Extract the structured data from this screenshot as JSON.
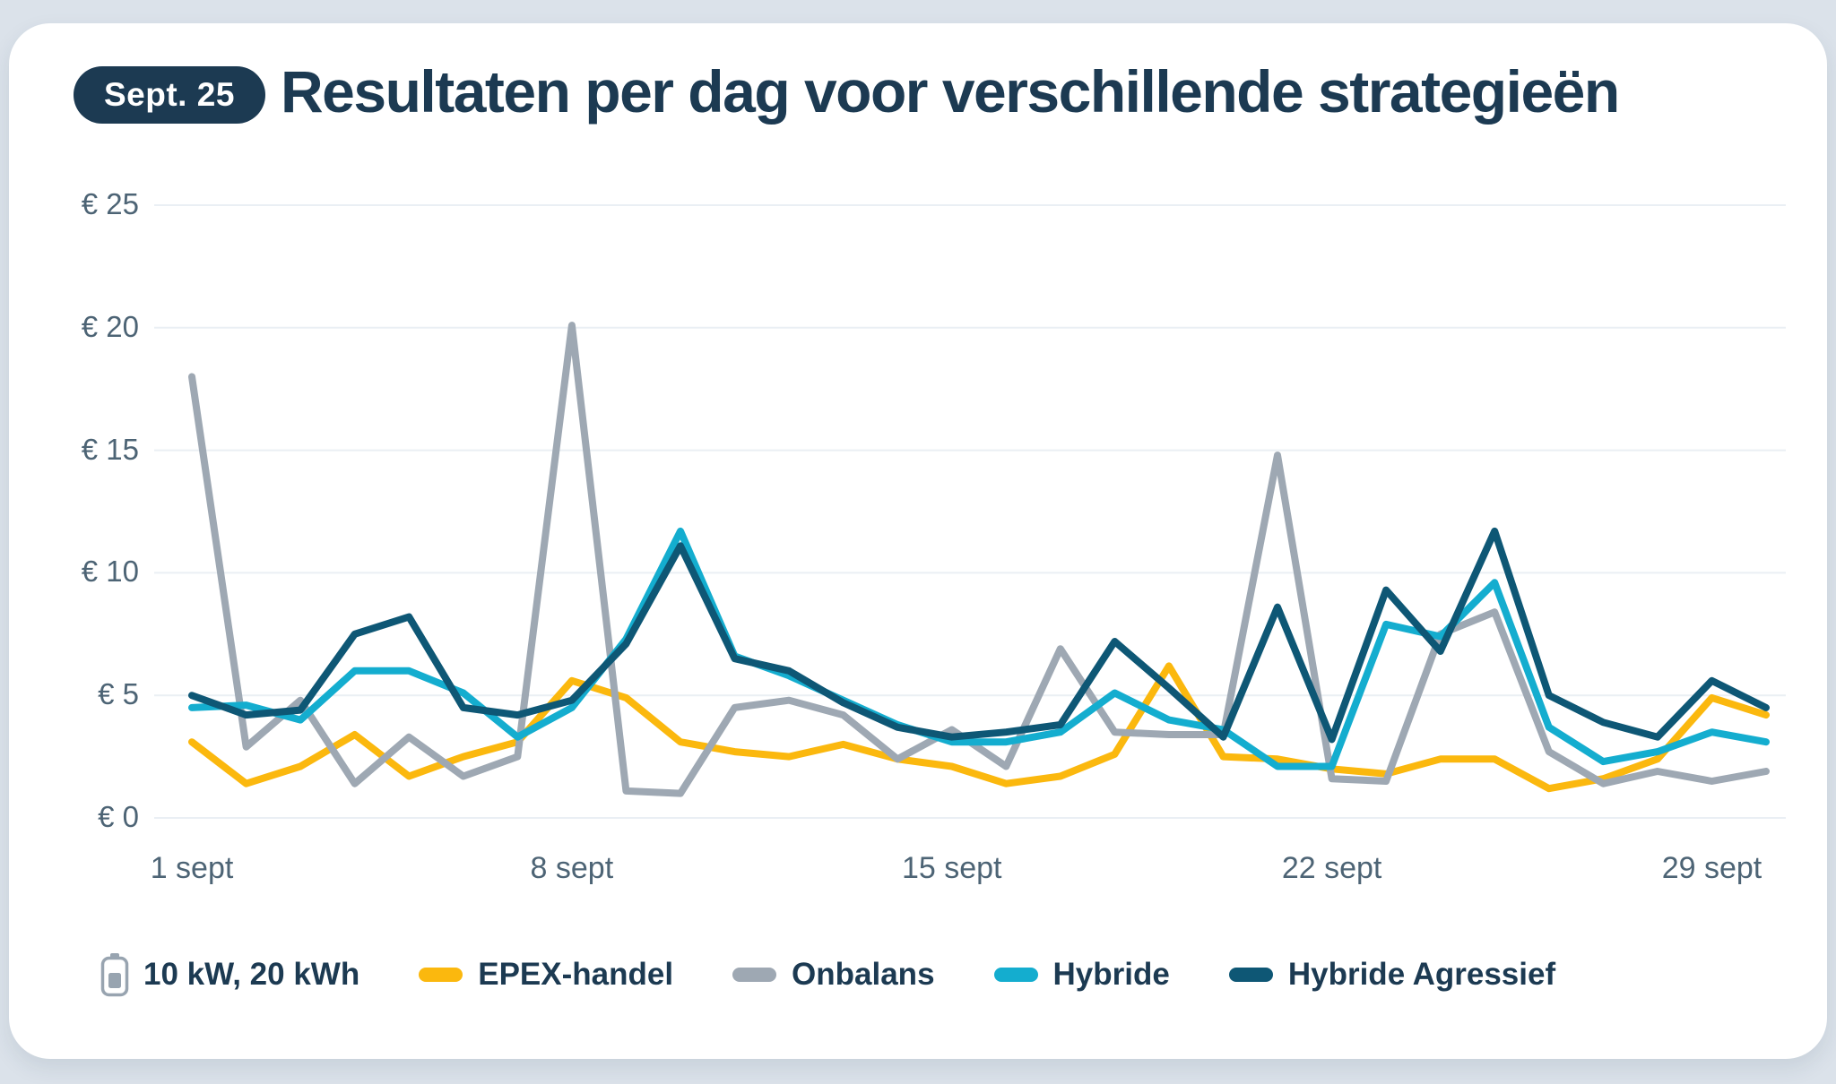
{
  "badge": "Sept. 25",
  "title": "Resultaten per dag voor verschillende strategieën",
  "legend": {
    "battery_icon": "battery-icon",
    "battery_label": "10 kW, 20 kWh"
  },
  "colors": {
    "card_background": "#ffffff",
    "page_background": "#dbe2ea",
    "badge_background": "#1c3a52",
    "title_text": "#1c3a52",
    "axis_text": "#4d6475",
    "gridline": "#eaeff4",
    "battery_icon_gray": "#98a4b0",
    "epex": "#fbb80e",
    "onbalans": "#9ea8b3",
    "hybride": "#14adcf",
    "hybride_agressief": "#0e5775"
  },
  "chart_data": {
    "type": "line",
    "title": "Resultaten per dag voor verschillende strategieën",
    "xlabel": "",
    "ylabel": "",
    "ylim": [
      0,
      25
    ],
    "y_tick_step": 5,
    "grid": true,
    "legend_position": "bottom",
    "x_days": [
      1,
      2,
      3,
      4,
      5,
      6,
      7,
      8,
      9,
      10,
      11,
      12,
      13,
      14,
      15,
      16,
      17,
      18,
      19,
      20,
      21,
      22,
      23,
      24,
      25,
      26,
      27,
      28,
      29,
      30
    ],
    "x_tick_labels": [
      "1 sept",
      "8 sept",
      "15 sept",
      "22 sept",
      "29 sept"
    ],
    "x_tick_days": [
      1,
      8,
      15,
      22,
      29
    ],
    "y_tick_labels": [
      "€ 0",
      "€ 5",
      "€ 10",
      "€ 15",
      "€ 20",
      "€ 25"
    ],
    "series": [
      {
        "name": "EPEX-handel",
        "color": "#fbb80e",
        "values": [
          3.1,
          1.4,
          2.1,
          3.4,
          1.7,
          2.5,
          3.1,
          5.6,
          4.9,
          3.1,
          2.7,
          2.5,
          3.0,
          2.4,
          2.1,
          1.4,
          1.7,
          2.6,
          6.2,
          2.5,
          2.4,
          2.0,
          1.8,
          2.4,
          2.4,
          1.2,
          1.6,
          2.4,
          4.9,
          4.2
        ]
      },
      {
        "name": "Onbalans",
        "color": "#9ea8b3",
        "values": [
          18.0,
          2.9,
          4.8,
          1.4,
          3.3,
          1.7,
          2.5,
          20.1,
          1.1,
          1.0,
          4.5,
          4.8,
          4.2,
          2.4,
          3.6,
          2.1,
          6.9,
          3.5,
          3.4,
          3.4,
          14.8,
          1.6,
          1.5,
          7.5,
          8.4,
          2.7,
          1.4,
          1.9,
          1.5,
          1.9
        ]
      },
      {
        "name": "Hybride",
        "color": "#14adcf",
        "values": [
          4.5,
          4.6,
          4.0,
          6.0,
          6.0,
          5.1,
          3.3,
          4.5,
          7.3,
          11.7,
          6.6,
          5.8,
          4.8,
          3.8,
          3.1,
          3.1,
          3.5,
          5.1,
          4.0,
          3.6,
          2.1,
          2.1,
          7.9,
          7.4,
          9.6,
          3.7,
          2.3,
          2.7,
          3.5,
          3.1
        ]
      },
      {
        "name": "Hybride Agressief",
        "color": "#0e5775",
        "values": [
          5.0,
          4.2,
          4.4,
          7.5,
          8.2,
          4.5,
          4.2,
          4.8,
          7.1,
          11.1,
          6.5,
          6.0,
          4.7,
          3.7,
          3.3,
          3.5,
          3.8,
          7.2,
          5.3,
          3.3,
          8.6,
          3.2,
          9.3,
          6.8,
          11.7,
          5.0,
          3.9,
          3.3,
          5.6,
          4.5
        ]
      }
    ]
  }
}
